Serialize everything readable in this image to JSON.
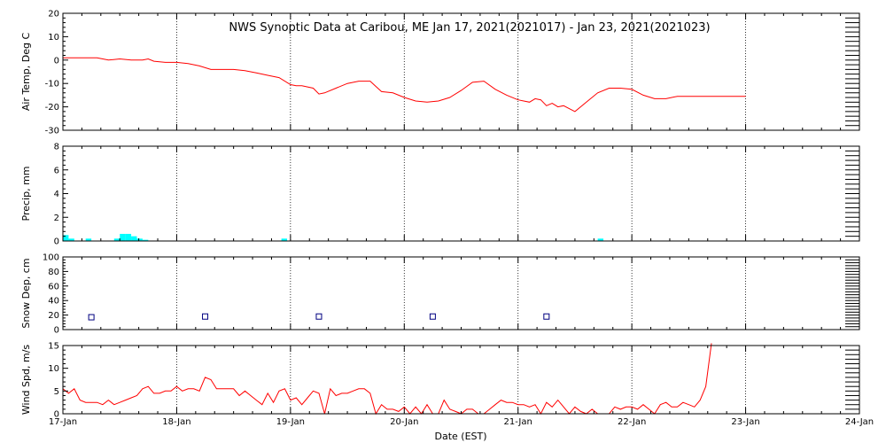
{
  "chart_data": {
    "type": "line",
    "title": "NWS Synoptic Data at Caribou, ME   Jan 17, 2021(2021017) - Jan 23, 2021(2021023)",
    "xlabel": "Date (EST)",
    "x_range_days": [
      0,
      7
    ],
    "xtick_labels": [
      "17-Jan",
      "18-Jan",
      "19-Jan",
      "20-Jan",
      "21-Jan",
      "22-Jan",
      "23-Jan",
      "24-Jan"
    ],
    "grid": true,
    "colors": {
      "temp": "#ff0000",
      "precip": "#00ffff",
      "snow": "#000080",
      "wind": "#ff0000",
      "axes": "#000000"
    },
    "panels": [
      {
        "id": "temp",
        "type": "line",
        "ylabel": "Air Temp, Deg C",
        "ylim": [
          -30,
          20
        ],
        "yticks": [
          20,
          10,
          0,
          -10,
          -20,
          -30
        ],
        "ytick_labels": [
          "20",
          "10",
          "0",
          "-10",
          "-20",
          "-30"
        ],
        "x": [
          0,
          0.3,
          0.4,
          0.5,
          0.6,
          0.7,
          0.75,
          0.8,
          0.9,
          1.0,
          1.1,
          1.2,
          1.3,
          1.4,
          1.5,
          1.6,
          1.7,
          1.8,
          1.9,
          2.0,
          2.05,
          2.1,
          2.2,
          2.25,
          2.3,
          2.4,
          2.5,
          2.6,
          2.7,
          2.8,
          2.9,
          3.0,
          3.1,
          3.2,
          3.3,
          3.4,
          3.5,
          3.6,
          3.7,
          3.8,
          3.9,
          4.0,
          4.05,
          4.1,
          4.15,
          4.2,
          4.25,
          4.3,
          4.35,
          4.4,
          4.5,
          4.6,
          4.7,
          4.8,
          4.9,
          5.0,
          5.1,
          5.2,
          5.3,
          5.4,
          5.5,
          5.6,
          5.7,
          5.8,
          5.9,
          6.0
        ],
        "y": [
          1,
          1,
          0,
          0.5,
          0,
          0,
          0.5,
          -0.5,
          -1,
          -1,
          -1.5,
          -2.5,
          -4,
          -4,
          -4,
          -4.5,
          -5.5,
          -6.5,
          -7.5,
          -10.5,
          -11,
          -11,
          -12,
          -14.5,
          -14,
          -12,
          -10,
          -9,
          -9,
          -13.5,
          -14,
          -16,
          -17.5,
          -18,
          -17.5,
          -16,
          -13,
          -9.5,
          -9,
          -12.5,
          -15,
          -17,
          -17.5,
          -18,
          -16.5,
          -17,
          -19.5,
          -18.5,
          -20,
          -19.5,
          -22,
          -18,
          -14,
          -12,
          -12,
          -12.5,
          -15,
          -16.5,
          -16.5,
          -15.5,
          -15.5,
          -15.5,
          -15.5,
          -15.5,
          -15.5,
          -15.5
        ]
      },
      {
        "id": "precip",
        "type": "bar",
        "ylabel": "Precip, mm",
        "ylim": [
          0,
          8
        ],
        "yticks": [
          8,
          6,
          4,
          2,
          0
        ],
        "ytick_labels": [
          "8",
          "6",
          "4",
          "2",
          "0"
        ],
        "bar_width_days": 0.05,
        "bars": [
          {
            "x": 0.0,
            "v": 0.5
          },
          {
            "x": 0.05,
            "v": 0.2
          },
          {
            "x": 0.2,
            "v": 0.2
          },
          {
            "x": 0.45,
            "v": 0.2
          },
          {
            "x": 0.5,
            "v": 0.6
          },
          {
            "x": 0.55,
            "v": 0.6
          },
          {
            "x": 0.6,
            "v": 0.4
          },
          {
            "x": 0.65,
            "v": 0.2
          },
          {
            "x": 0.7,
            "v": 0.1
          },
          {
            "x": 1.92,
            "v": 0.2
          },
          {
            "x": 4.7,
            "v": 0.2
          }
        ]
      },
      {
        "id": "snow",
        "type": "scatter",
        "ylabel": "Snow Dep, cm",
        "ylim": [
          0,
          100
        ],
        "yticks": [
          100,
          80,
          60,
          40,
          20,
          0
        ],
        "ytick_labels": [
          "100",
          "80",
          "60",
          "40",
          "20",
          "0"
        ],
        "x": [
          0.25,
          1.25,
          2.25,
          3.25,
          4.25
        ],
        "y": [
          17,
          18,
          18,
          18,
          18
        ]
      },
      {
        "id": "wind",
        "type": "line",
        "ylabel": "Wind Spd, m/s",
        "ylim": [
          0,
          15
        ],
        "yticks": [
          15,
          10,
          5,
          0
        ],
        "ytick_labels": [
          "15",
          "10",
          "5",
          "0"
        ],
        "x": [
          0,
          0.05,
          0.1,
          0.15,
          0.2,
          0.25,
          0.3,
          0.35,
          0.4,
          0.45,
          0.5,
          0.55,
          0.6,
          0.65,
          0.7,
          0.75,
          0.8,
          0.85,
          0.9,
          0.95,
          1.0,
          1.05,
          1.1,
          1.15,
          1.2,
          1.25,
          1.3,
          1.35,
          1.4,
          1.45,
          1.5,
          1.55,
          1.6,
          1.65,
          1.7,
          1.75,
          1.8,
          1.85,
          1.9,
          1.95,
          2.0,
          2.05,
          2.1,
          2.15,
          2.2,
          2.25,
          2.3,
          2.35,
          2.4,
          2.45,
          2.5,
          2.55,
          2.6,
          2.65,
          2.7,
          2.75,
          2.8,
          2.85,
          2.9,
          2.95,
          3.0,
          3.05,
          3.1,
          3.15,
          3.2,
          3.25,
          3.3,
          3.35,
          3.4,
          3.45,
          3.5,
          3.55,
          3.6,
          3.65,
          3.7,
          3.75,
          3.8,
          3.85,
          3.9,
          3.95,
          4.0,
          4.05,
          4.1,
          4.15,
          4.2,
          4.25,
          4.3,
          4.35,
          4.4,
          4.45,
          4.5,
          4.55,
          4.6,
          4.65,
          4.7,
          4.75,
          4.8,
          4.85,
          4.9,
          4.95,
          5.0,
          5.05,
          5.1,
          5.15,
          5.2,
          5.25,
          5.3,
          5.35,
          5.4,
          5.45,
          5.5,
          5.55,
          5.6,
          5.65,
          5.7
        ],
        "y": [
          5.5,
          4.5,
          5.5,
          3,
          2.5,
          2.5,
          2.5,
          2,
          3,
          2,
          2.5,
          3,
          3.5,
          4,
          5.5,
          6,
          4.5,
          4.5,
          5,
          5,
          6,
          5,
          5.5,
          5.5,
          5,
          8,
          7.5,
          5.5,
          5.5,
          5.5,
          5.5,
          4,
          5,
          4,
          3,
          2,
          4.5,
          2.5,
          5,
          5.5,
          3,
          3.5,
          2,
          3.5,
          5,
          4.5,
          0,
          5.5,
          4,
          4.5,
          4.5,
          5,
          5.5,
          5.5,
          4.5,
          0,
          2,
          1,
          1,
          0.5,
          1.5,
          0,
          1.5,
          0,
          2,
          0,
          0,
          3,
          1,
          0.5,
          0,
          1,
          1,
          0,
          0,
          1,
          2,
          3,
          2.5,
          2.5,
          2,
          2,
          1.5,
          2,
          0,
          2.5,
          1.5,
          3,
          1.5,
          0,
          1.5,
          0.5,
          0,
          1,
          0,
          0,
          0,
          1.5,
          1,
          1.5,
          1.5,
          1,
          2,
          1,
          0,
          2,
          2.5,
          1.5,
          1.5,
          2.5,
          2,
          1.5,
          3,
          6,
          15.5
        ]
      }
    ]
  }
}
